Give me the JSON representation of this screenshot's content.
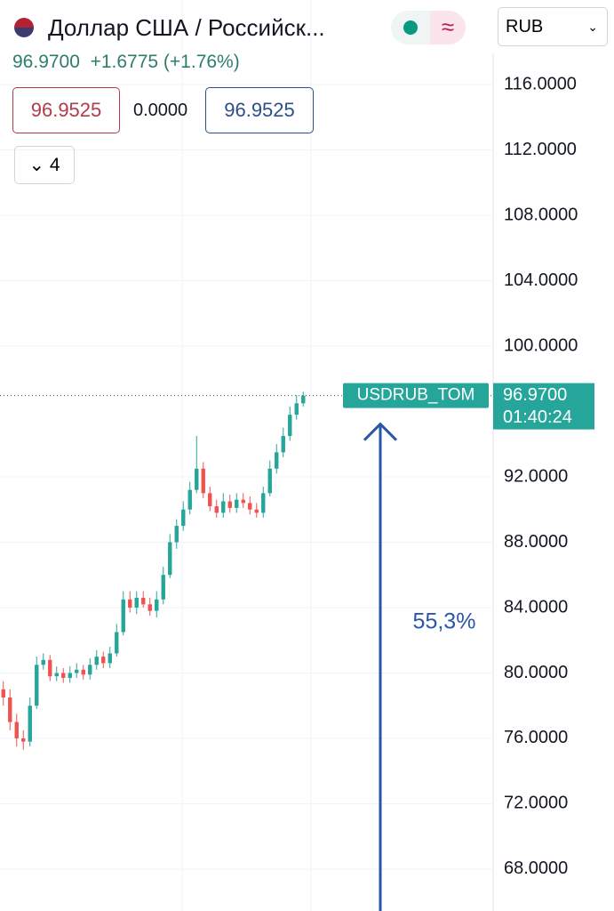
{
  "header": {
    "title": "Доллар США / Российск...",
    "price": "96.9700",
    "change": "+1.6775 (+1.76%)",
    "bid": "96.9525",
    "spread": "0.0000",
    "ask": "96.9525",
    "indicators_count": "4",
    "currency": "RUB"
  },
  "chart_data": {
    "type": "candlestick",
    "categories": [
      null,
      null,
      null,
      null,
      null,
      null,
      null,
      null,
      null,
      null,
      null,
      null,
      null,
      null,
      null,
      null,
      null,
      null,
      null,
      null,
      null,
      null,
      null,
      null,
      null,
      null,
      null,
      null,
      null,
      null,
      null,
      null,
      null,
      null,
      null,
      null,
      null,
      null,
      null,
      null,
      null,
      null,
      null,
      null,
      null,
      null
    ],
    "open": [
      79,
      78.5,
      77,
      76,
      75.8,
      78,
      80.5,
      80.8,
      79.8,
      80,
      79.7,
      80,
      80.2,
      79.9,
      80.5,
      81,
      80.6,
      81.2,
      82.5,
      84.5,
      84,
      84.6,
      84.2,
      83.8,
      84.5,
      86,
      88,
      89,
      90,
      91.2,
      92.5,
      91,
      90.2,
      89.8,
      90.5,
      90.1,
      90.6,
      90.4,
      90,
      89.8,
      91,
      92.5,
      93.5,
      94.5,
      95.8,
      96.5
    ],
    "high": [
      79.5,
      79,
      77.5,
      76.5,
      78.5,
      81,
      81.2,
      81.1,
      80.4,
      80.3,
      80.4,
      80.6,
      80.5,
      80.9,
      81.4,
      81.3,
      81.6,
      83,
      85,
      85,
      85,
      85,
      84.6,
      85,
      86.5,
      88.5,
      89.4,
      90.5,
      91.7,
      94.5,
      92.9,
      91.4,
      90.6,
      91,
      90.9,
      91,
      91,
      90.8,
      90.4,
      91.4,
      93,
      94,
      95,
      96.3,
      97,
      97.2
    ],
    "low": [
      78,
      76.5,
      75.5,
      75.3,
      75.5,
      77.8,
      80.2,
      79.5,
      79.5,
      79.4,
      79.4,
      79.7,
      79.6,
      79.6,
      80.2,
      80.3,
      80.3,
      81,
      82.3,
      83.7,
      83.6,
      84,
      83.5,
      83.4,
      84.2,
      85.8,
      87.6,
      88.7,
      89.7,
      91,
      90.7,
      89.9,
      89.5,
      89.5,
      89.8,
      89.8,
      90.1,
      89.7,
      89.5,
      89.5,
      90.8,
      92.2,
      93.2,
      94.2,
      95.5,
      96.3
    ],
    "close": [
      78.5,
      77,
      76,
      75.8,
      78,
      80.5,
      80.8,
      79.8,
      80,
      79.7,
      80,
      80.2,
      79.9,
      80.5,
      81,
      80.6,
      81.2,
      82.5,
      84.5,
      84,
      84.6,
      84.2,
      83.8,
      84.5,
      86,
      88,
      89,
      90,
      91.2,
      92.5,
      91,
      90.2,
      89.8,
      90.5,
      90.1,
      90.6,
      90.4,
      90,
      89.8,
      91,
      92.5,
      93.5,
      94.5,
      95.8,
      96.5,
      96.97
    ],
    "up_color": "#26a69a",
    "down_color": "#ef5350",
    "ylim": [
      65.44,
      121.17
    ],
    "yticks": [
      {
        "value": 68,
        "label": "68.0000"
      },
      {
        "value": 72,
        "label": "72.0000"
      },
      {
        "value": 76,
        "label": "76.0000"
      },
      {
        "value": 80,
        "label": "80.0000"
      },
      {
        "value": 84,
        "label": "84.0000"
      },
      {
        "value": 88,
        "label": "88.0000"
      },
      {
        "value": 92,
        "label": "92.0000"
      },
      {
        "value": 100,
        "label": "100.0000"
      },
      {
        "value": 104,
        "label": "104.0000"
      },
      {
        "value": 108,
        "label": "108.0000"
      },
      {
        "value": 112,
        "label": "112.0000"
      },
      {
        "value": 116,
        "label": "116.0000"
      }
    ],
    "grid": true,
    "last_price": {
      "value": 96.97,
      "label": "96.9700"
    },
    "countdown": "01:40:24",
    "symbol_label": "USDRUB_TOM",
    "annotation": "55,3%",
    "annotation_color": "#2a56a8"
  }
}
